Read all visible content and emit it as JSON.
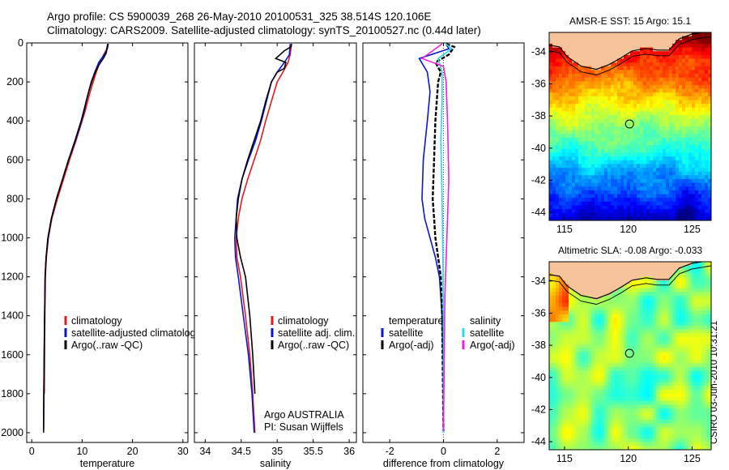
{
  "header": {
    "line1": "Argo profile: CS 5900039_268 26-May-2010 20100531_325 38.514S 120.106E",
    "line2": "Climatology: CARS2009. Satellite-adjusted climatology: synTS_20100527.nc (0.44d later)"
  },
  "stamp": "CSIRO 03-Jun-2010 10:31:21",
  "colors": {
    "climatology": "#e41a1c",
    "satellite": "#0a14d8",
    "argo": "#000000",
    "salinity_satellite": "#2ad8e8",
    "salinity_argo": "#ee22dd",
    "land": "#f7c49a"
  },
  "chart_data": [
    {
      "type": "line",
      "id": "temperature",
      "xlabel": "temperature",
      "ylabel": "",
      "xlim": [
        -1,
        31
      ],
      "ylim": [
        2050,
        0
      ],
      "y_reversed": true,
      "xticks": [
        0,
        10,
        20,
        30
      ],
      "yticks": [
        0,
        200,
        400,
        600,
        800,
        1000,
        1200,
        1400,
        1600,
        1800,
        2000
      ],
      "legend": {
        "placement": "lower-right",
        "entries": [
          "climatology",
          "satellite-adjusted climatology",
          "Argo(..raw -QC)"
        ]
      },
      "series": [
        {
          "name": "climatology",
          "color": "#e41a1c",
          "x": [
            15.1,
            14.9,
            14.3,
            13.5,
            12.8,
            12.2,
            11.6,
            11.1,
            10.6,
            10.0,
            9.4,
            8.8,
            7.5,
            6.3,
            5.1,
            4.0,
            3.3,
            2.9,
            2.7,
            2.55,
            2.5
          ],
          "y": [
            5,
            30,
            60,
            100,
            150,
            200,
            250,
            300,
            350,
            400,
            450,
            500,
            600,
            700,
            800,
            900,
            1000,
            1100,
            1200,
            1500,
            1800
          ]
        },
        {
          "name": "satellite-adjusted climatology",
          "color": "#0a14d8",
          "x": [
            15.2,
            15.0,
            14.4,
            13.3,
            12.5,
            11.8,
            11.3,
            10.8,
            10.4,
            9.9,
            9.3,
            8.7,
            7.3,
            6.1,
            4.9,
            3.9,
            3.2,
            2.85,
            2.65,
            2.5,
            2.4,
            2.35
          ],
          "y": [
            5,
            30,
            60,
            100,
            150,
            200,
            250,
            300,
            350,
            400,
            450,
            500,
            600,
            700,
            800,
            900,
            1000,
            1100,
            1200,
            1500,
            1800,
            2000
          ]
        },
        {
          "name": "Argo(..raw -QC)",
          "color": "#000000",
          "x": [
            15.1,
            14.9,
            14.8,
            14.2,
            13.4,
            12.6,
            11.9,
            11.3,
            10.8,
            10.3,
            9.8,
            9.2,
            8.6,
            7.3,
            6.1,
            4.9,
            3.9,
            3.25,
            2.85,
            2.65,
            2.5,
            2.4,
            2.35
          ],
          "y": [
            5,
            30,
            50,
            80,
            110,
            150,
            200,
            250,
            300,
            350,
            400,
            450,
            500,
            600,
            700,
            800,
            900,
            1000,
            1100,
            1200,
            1500,
            1800,
            1990
          ]
        }
      ]
    },
    {
      "type": "line",
      "id": "salinity",
      "xlabel": "salinity",
      "ylabel": "",
      "xlim": [
        33.85,
        36.1
      ],
      "ylim": [
        2050,
        0
      ],
      "y_reversed": true,
      "xticks": [
        34,
        34.5,
        35,
        35.5,
        36
      ],
      "xticklabels": [
        "34",
        "34.5",
        "35",
        "35.5",
        "36"
      ],
      "legend": {
        "placement": "lower-right",
        "entries": [
          "climatology",
          "satellite adj. clim.",
          "Argo(..raw -QC)"
        ]
      },
      "annotation": {
        "line1": "Argo AUSTRALIA",
        "line2": "PI: Susan Wijffels"
      },
      "series": [
        {
          "name": "climatology",
          "color": "#e41a1c",
          "x": [
            35.2,
            35.18,
            35.15,
            35.08,
            35.0,
            34.92,
            34.84,
            34.77,
            34.68,
            34.59,
            34.51,
            34.46,
            34.43,
            34.44,
            34.49,
            34.56,
            34.62,
            34.66,
            34.69
          ],
          "y": [
            5,
            60,
            100,
            150,
            200,
            300,
            400,
            500,
            600,
            700,
            800,
            900,
            1000,
            1100,
            1200,
            1400,
            1600,
            1800,
            2000
          ]
        },
        {
          "name": "satellite adj. clim.",
          "color": "#0a14d8",
          "x": [
            35.18,
            35.17,
            35.1,
            35.0,
            34.92,
            34.85,
            34.78,
            34.7,
            34.6,
            34.51,
            34.45,
            34.41,
            34.42,
            34.46,
            34.53,
            34.6,
            34.65,
            34.68
          ],
          "y": [
            5,
            60,
            100,
            150,
            200,
            300,
            400,
            500,
            600,
            700,
            800,
            1000,
            1100,
            1200,
            1400,
            1600,
            1800,
            2000
          ]
        },
        {
          "name": "Argo(..raw -QC)",
          "color": "#000000",
          "x": [
            35.2,
            35.19,
            35.1,
            34.98,
            35.12,
            35.1,
            35.0,
            34.92,
            34.84,
            34.77,
            34.68,
            34.59,
            34.51,
            34.46,
            34.43,
            34.44,
            34.49,
            34.56,
            34.62,
            34.66,
            34.69
          ],
          "y": [
            5,
            20,
            40,
            80,
            100,
            130,
            150,
            200,
            300,
            400,
            500,
            600,
            700,
            800,
            900,
            1000,
            1100,
            1200,
            1400,
            1600,
            1800
          ]
        }
      ]
    },
    {
      "type": "line",
      "id": "difference",
      "xlabel": "difference from climatology",
      "ylabel": "",
      "xlim": [
        -3,
        3
      ],
      "ylim": [
        2050,
        0
      ],
      "y_reversed": true,
      "xticks": [
        -2,
        0,
        2
      ],
      "legend": {
        "placement": "lower-left",
        "groups": [
          {
            "heading": "temperature",
            "entries": [
              "satellite",
              "Argo(-adj)"
            ]
          },
          {
            "heading": "salinity",
            "entries": [
              "satellite",
              "Argo(-adj)"
            ]
          }
        ]
      },
      "series": [
        {
          "name": "temperature satellite",
          "color": "#0a14d8",
          "x": [
            0.1,
            0.2,
            -0.9,
            -0.6,
            -0.5,
            -0.6,
            -0.75,
            -0.8,
            -0.7,
            -0.5,
            -0.3,
            -0.15,
            -0.05,
            0.0,
            0.0
          ],
          "y": [
            5,
            30,
            80,
            150,
            250,
            400,
            600,
            800,
            900,
            1000,
            1100,
            1200,
            1400,
            1700,
            2000
          ]
        },
        {
          "name": "temperature Argo(-adj)",
          "color": "#000000",
          "x": [
            0.1,
            0.4,
            0.2,
            -0.3,
            -0.1,
            -0.2,
            -0.3,
            -0.35,
            -0.4,
            -0.35,
            -0.3,
            -0.2,
            -0.1,
            -0.05,
            0.0
          ],
          "y": [
            5,
            20,
            60,
            100,
            150,
            200,
            400,
            600,
            800,
            900,
            1000,
            1100,
            1200,
            1400,
            1990
          ]
        },
        {
          "name": "salinity satellite",
          "color": "#2ad8e8",
          "x": [
            0.1,
            0.3,
            -0.2,
            -0.05,
            -0.05,
            -0.1,
            -0.05,
            -0.02,
            0.0,
            0.0
          ],
          "y": [
            5,
            30,
            80,
            150,
            300,
            500,
            800,
            1100,
            1500,
            2000
          ]
        },
        {
          "name": "salinity Argo(-adj)",
          "color": "#ee22dd",
          "x": [
            -0.05,
            -0.4,
            -0.8,
            0.0,
            0.1,
            0.15,
            0.2,
            0.15,
            0.05,
            0.0
          ],
          "y": [
            5,
            40,
            80,
            120,
            200,
            400,
            700,
            900,
            1300,
            1990
          ]
        }
      ]
    },
    {
      "type": "heatmap",
      "id": "sst",
      "title": "AMSR-E SST: 15 Argo: 15.1",
      "xlim": [
        113.8,
        126.5
      ],
      "ylim": [
        -44.5,
        -32.8
      ],
      "xticks": [
        115,
        120,
        125
      ],
      "yticks": [
        -34,
        -36,
        -38,
        -40,
        -42,
        -44
      ],
      "marker": {
        "lon": 120.1,
        "lat": -38.5
      },
      "colorscale": "jet",
      "description": "warm (red) near coast in the north, cooling to blue in the south"
    },
    {
      "type": "heatmap",
      "id": "sla",
      "title": "Altimetric SLA: -0.08 Argo: -0.033",
      "xlim": [
        113.8,
        126.5
      ],
      "ylim": [
        -44.5,
        -32.8
      ],
      "xticks": [
        115,
        120,
        125
      ],
      "yticks": [
        -34,
        -36,
        -38,
        -40,
        -42,
        -44
      ],
      "marker": {
        "lon": 120.1,
        "lat": -38.5
      },
      "colorscale": "jet",
      "description": "mostly green, yellow patches, orange near coast in northwest"
    }
  ]
}
